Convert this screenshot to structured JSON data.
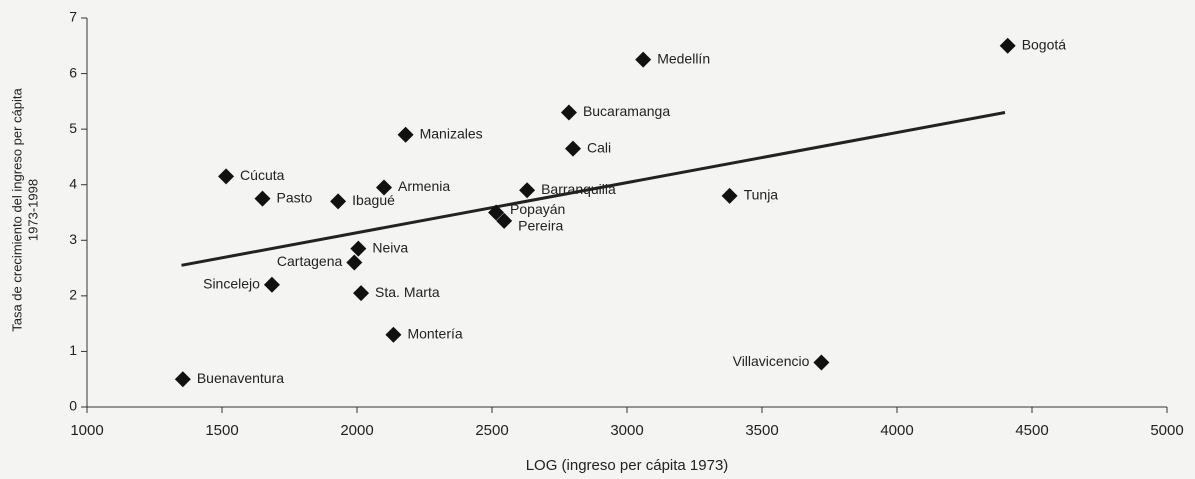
{
  "chart_data": {
    "type": "scatter",
    "xlabel": "LOG (ingreso per cápita 1973)",
    "ylabel": [
      "Tasa de crecimiento del ingreso per cápita",
      "1973-1998"
    ],
    "xlim": [
      1000,
      5000
    ],
    "xticks": [
      1000,
      1500,
      2000,
      2500,
      3000,
      3500,
      4000,
      4500,
      5000
    ],
    "ylim": [
      0,
      7
    ],
    "yticks": [
      0,
      1,
      2,
      3,
      4,
      5,
      6,
      7
    ],
    "color": "#111111",
    "labels": [
      "Bogotá",
      "Medellín",
      "Bucaramanga",
      "Cali",
      "Manizales",
      "Cúcuta",
      "Armenia",
      "Barranquilla",
      "Tunja",
      "Pasto",
      "Ibagué",
      "Popayán",
      "Pereira",
      "Neiva",
      "Cartagena",
      "Sincelejo",
      "Sta. Marta",
      "Montería",
      "Villavicencio",
      "Buenaventura"
    ],
    "x": [
      4410,
      3060,
      2785,
      2800,
      2180,
      1515,
      2100,
      2630,
      3380,
      1650,
      1930,
      2515,
      2545,
      2005,
      1990,
      1685,
      2015,
      2135,
      3720,
      1355
    ],
    "values": [
      6.5,
      6.25,
      5.3,
      4.65,
      4.9,
      4.15,
      3.95,
      3.9,
      3.8,
      3.75,
      3.7,
      3.5,
      3.35,
      2.85,
      2.6,
      2.2,
      2.05,
      1.3,
      0.8,
      0.5
    ],
    "trendline": {
      "x": [
        1350,
        4400
      ],
      "values": [
        2.55,
        5.3
      ]
    }
  }
}
